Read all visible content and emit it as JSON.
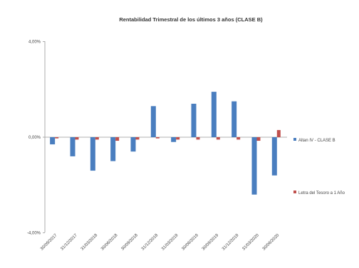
{
  "chart_data": {
    "type": "bar",
    "title": "Rentabilidad Trimestral de los últimos 3 años (CLASE B)",
    "categories": [
      "30/09/2017",
      "31/12/2017",
      "31/03/2018",
      "30/06/2018",
      "30/09/2018",
      "31/12/2018",
      "31/03/2019",
      "30/06/2019",
      "30/09/2019",
      "31/12/2019",
      "31/03/2020",
      "30/06/2020"
    ],
    "series": [
      {
        "name": "Altan IV - CLASE B",
        "color": "#4a7ebf",
        "values": [
          -0.3,
          -0.8,
          -1.4,
          -1.0,
          -0.6,
          1.3,
          -0.2,
          1.4,
          1.9,
          1.5,
          -2.4,
          -1.6
        ]
      },
      {
        "name": "Letra del Tesoro a 1 Año",
        "color": "#c0504d",
        "values": [
          -0.05,
          -0.1,
          -0.1,
          -0.15,
          -0.1,
          -0.05,
          -0.1,
          -0.1,
          -0.1,
          -0.1,
          -0.15,
          0.3
        ]
      }
    ],
    "ylim": [
      -4,
      4
    ],
    "yticks": [
      "-4,00%",
      "0,00%",
      "4,00%"
    ],
    "yticks_values": [
      -4,
      0,
      4
    ],
    "legend_position": "right",
    "grid": false
  }
}
